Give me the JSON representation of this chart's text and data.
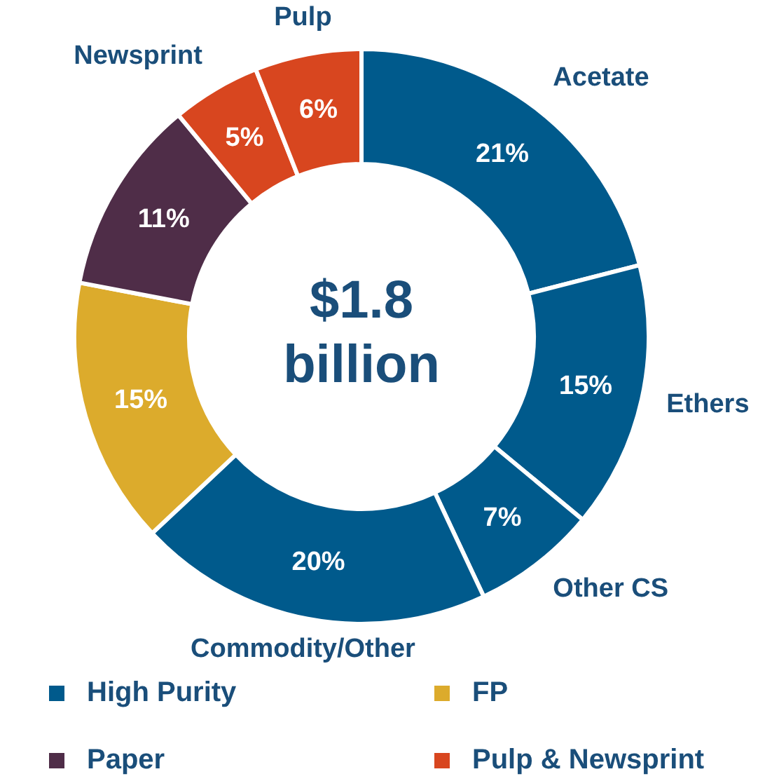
{
  "chart_data": {
    "type": "donut",
    "categories": [
      "Acetate",
      "Ethers",
      "Other CS",
      "Commodity/Other",
      null,
      null,
      "Newsprint",
      "Pulp"
    ],
    "values": [
      21,
      15,
      7,
      20,
      15,
      11,
      5,
      6
    ],
    "colors": [
      "#005a8c",
      "#005a8c",
      "#005a8c",
      "#005a8c",
      "#dcab2c",
      "#4f2d48",
      "#d8461f",
      "#d8461f"
    ],
    "value_labels": [
      "21%",
      "15%",
      "7%",
      "20%",
      "15%",
      "11%",
      "5%",
      "6%"
    ],
    "annotations": [
      "$1.8 billion",
      "High Purity",
      "FP",
      "Paper",
      "Pulp & Newsprint"
    ]
  }
}
